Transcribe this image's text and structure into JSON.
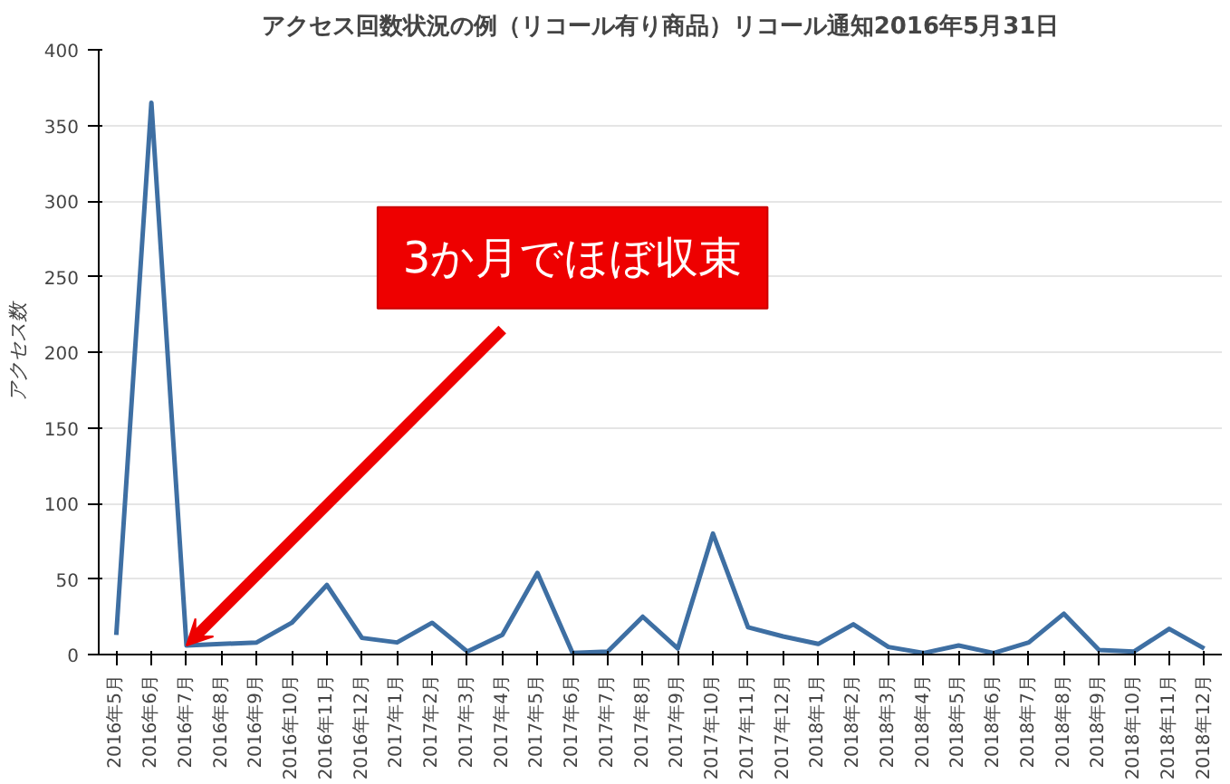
{
  "chart_data": {
    "type": "line",
    "title": "アクセス回数状況の例（リコール有り商品）リコール通知2016年5月31日",
    "ylabel": "アクセス数",
    "categories": [
      "2016年5月",
      "2016年6月",
      "2016年7月",
      "2016年8月",
      "2016年9月",
      "2016年10月",
      "2016年11月",
      "2016年12月",
      "2017年1月",
      "2017年2月",
      "2017年3月",
      "2017年4月",
      "2017年5月",
      "2017年6月",
      "2017年7月",
      "2017年8月",
      "2017年9月",
      "2017年10月",
      "2017年11月",
      "2017年12月",
      "2018年1月",
      "2018年2月",
      "2018年3月",
      "2018年4月",
      "2018年5月",
      "2018年6月",
      "2018年7月",
      "2018年8月",
      "2018年9月",
      "2018年10月",
      "2018年11月",
      "2018年12月"
    ],
    "series": [
      {
        "color": "#3e6fa3",
        "values": [
          13,
          365,
          6,
          7,
          8,
          21,
          46,
          11,
          8,
          21,
          2,
          13,
          54,
          1,
          2,
          25,
          4,
          80,
          18,
          12,
          7,
          20,
          5,
          1,
          6,
          1,
          8,
          27,
          3,
          2,
          17,
          4
        ]
      }
    ],
    "ylim": [
      0,
      400
    ],
    "yticks": [
      0,
      50,
      100,
      150,
      200,
      250,
      300,
      350,
      400
    ],
    "grid": "y",
    "marker": "none",
    "annotations": [
      {
        "text": "3か月でほぼ収束",
        "x": "2016年7月",
        "y": 6
      }
    ]
  }
}
